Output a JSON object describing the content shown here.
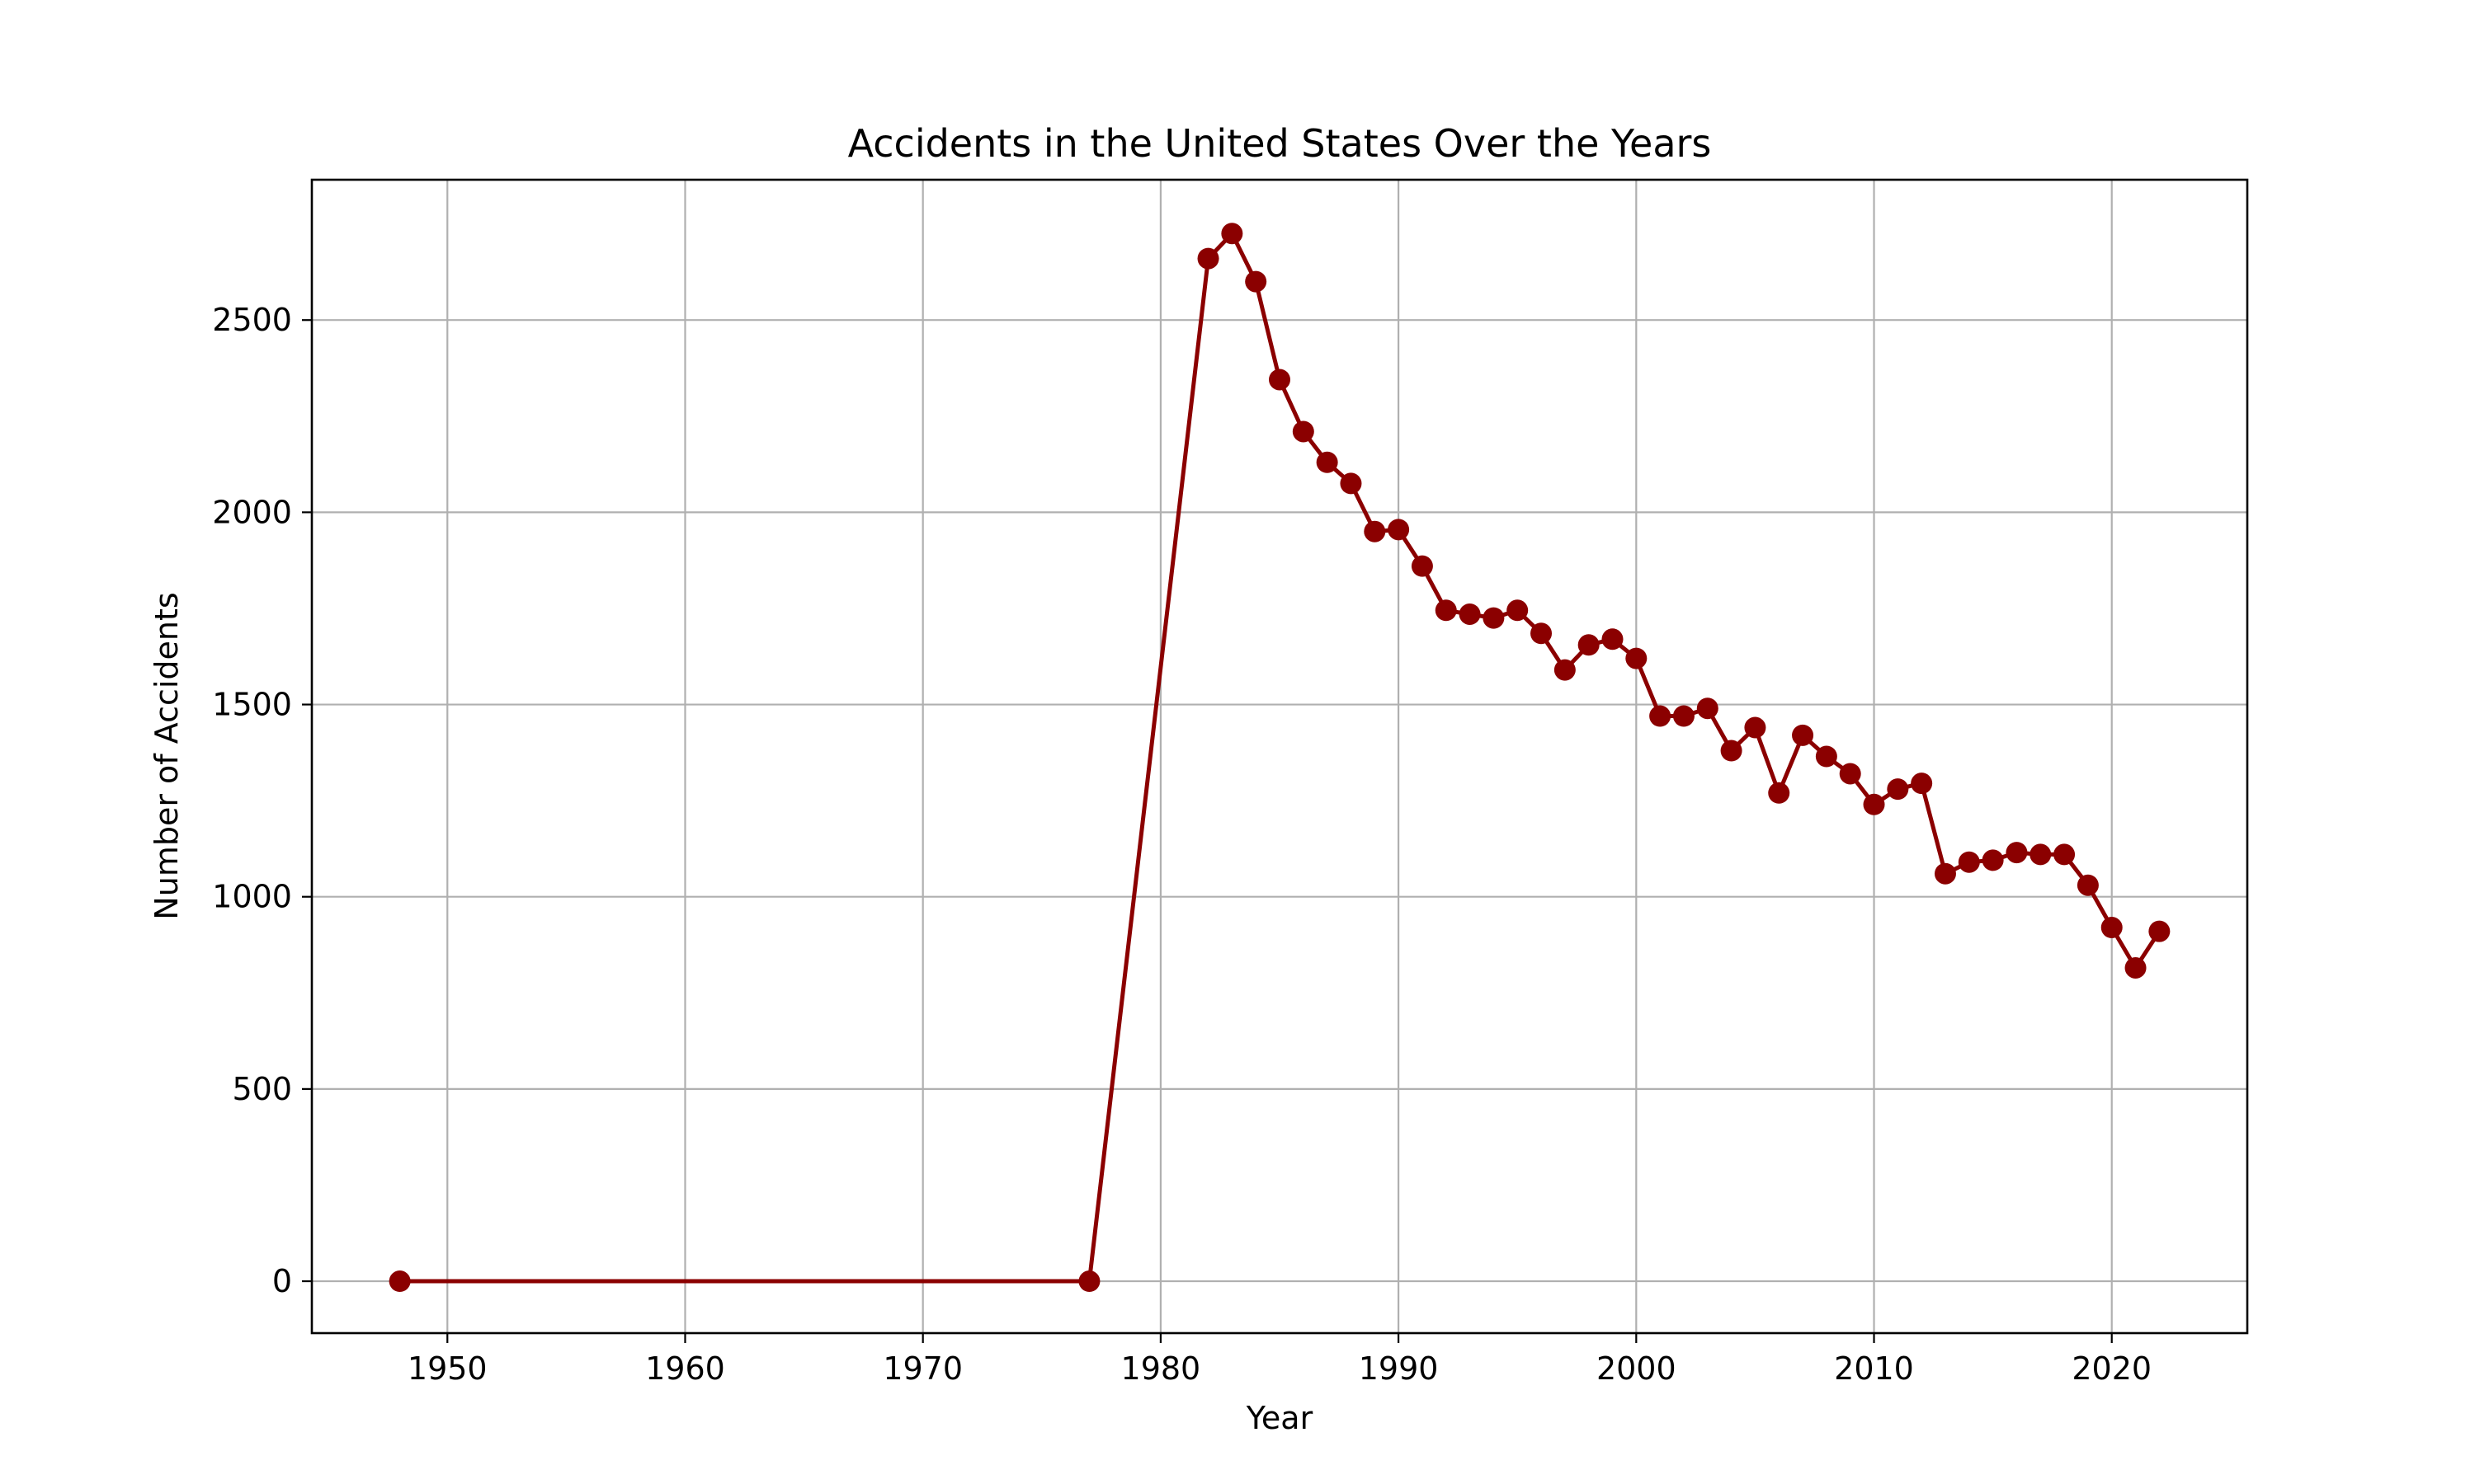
{
  "chart_data": {
    "type": "line",
    "title": "Accidents in the United States Over the Years",
    "xlabel": "Year",
    "ylabel": "Number of Accidents",
    "xlim": [
      1944.3,
      2025.7
    ],
    "ylim": [
      -135,
      2865
    ],
    "xticks": [
      1950,
      1960,
      1970,
      1980,
      1990,
      2000,
      2010,
      2020
    ],
    "yticks": [
      0,
      500,
      1000,
      1500,
      2000,
      2500
    ],
    "grid": true,
    "color": "#8b0000",
    "x": [
      1948,
      1977,
      1982,
      1983,
      1984,
      1985,
      1986,
      1987,
      1988,
      1989,
      1990,
      1991,
      1992,
      1993,
      1994,
      1995,
      1996,
      1997,
      1998,
      1999,
      2000,
      2001,
      2002,
      2003,
      2004,
      2005,
      2006,
      2007,
      2008,
      2009,
      2010,
      2011,
      2012,
      2013,
      2014,
      2015,
      2016,
      2017,
      2018,
      2019,
      2020,
      2021,
      2022
    ],
    "y": [
      0,
      0,
      2660,
      2725,
      2600,
      2345,
      2210,
      2130,
      2075,
      1950,
      1955,
      1860,
      1745,
      1735,
      1725,
      1745,
      1685,
      1590,
      1655,
      1670,
      1620,
      1470,
      1470,
      1490,
      1380,
      1440,
      1270,
      1420,
      1365,
      1320,
      1240,
      1280,
      1295,
      1060,
      1090,
      1095,
      1115,
      1110,
      1110,
      1030,
      920,
      815,
      910
    ]
  }
}
